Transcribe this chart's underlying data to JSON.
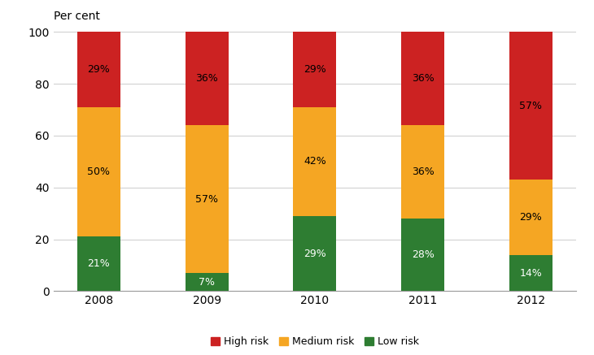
{
  "years": [
    "2008",
    "2009",
    "2010",
    "2011",
    "2012"
  ],
  "low_risk": [
    21,
    7,
    29,
    28,
    14
  ],
  "medium_risk": [
    50,
    57,
    42,
    36,
    29
  ],
  "high_risk": [
    29,
    36,
    29,
    36,
    57
  ],
  "low_color": "#2e7d32",
  "medium_color": "#f5a623",
  "high_color": "#cc2222",
  "ylabel": "Per cent",
  "ylim": [
    0,
    100
  ],
  "yticks": [
    0,
    20,
    40,
    60,
    80,
    100
  ],
  "legend_labels": [
    "High risk",
    "Medium risk",
    "Low risk"
  ],
  "bar_width": 0.4,
  "background_color": "#ffffff",
  "grid_color": "#cccccc",
  "label_fontsize": 9,
  "axis_fontsize": 10,
  "ylabel_fontsize": 10
}
